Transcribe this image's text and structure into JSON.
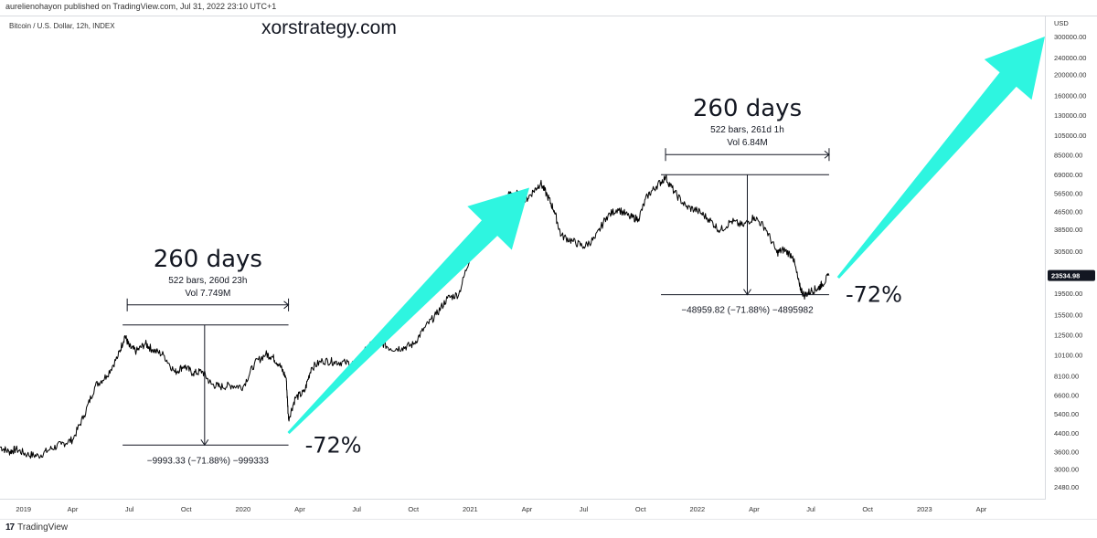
{
  "header": {
    "published_by": "aurelienohayon published on TradingView.com, Jul 31, 2022 23:10 UTC+1",
    "symbol": "Bitcoin / U.S. Dollar, 12h, INDEX",
    "watermark": "xorstrategy.com"
  },
  "footer": {
    "logo_text": "TradingView",
    "logo_mark": "17"
  },
  "colors": {
    "arrow": "#2ef5e0",
    "price_tag_bg": "#131722",
    "line": "#000000"
  },
  "chart_data": {
    "type": "line",
    "title": "Bitcoin / U.S. Dollar, 12h, INDEX",
    "scale": "log",
    "ylabel": "USD",
    "ylim": [
      2480,
      300000
    ],
    "y_ticks": [
      2480,
      3000,
      3600,
      4400,
      5400,
      6600,
      8100,
      10100,
      12500,
      15500,
      19500,
      23534.98,
      30500,
      38500,
      46500,
      56500,
      69000,
      85000,
      105000,
      130000,
      160000,
      200000,
      240000,
      300000
    ],
    "y_tick_labels": [
      "2480.00",
      "3000.00",
      "3600.00",
      "4400.00",
      "5400.00",
      "6600.00",
      "8100.00",
      "10100.00",
      "12500.00",
      "15500.00",
      "19500.00",
      "23534.98",
      "30500.00",
      "38500.00",
      "46500.00",
      "56500.00",
      "69000.00",
      "85000.00",
      "105000.00",
      "130000.00",
      "160000.00",
      "200000.00",
      "240000.00",
      "300000.00"
    ],
    "x_ticks": [
      "2019",
      "Apr",
      "Jul",
      "Oct",
      "2020",
      "Apr",
      "Jul",
      "Oct",
      "2021",
      "Apr",
      "Jul",
      "Oct",
      "2022",
      "Apr",
      "Jul",
      "Oct",
      "2023",
      "Apr"
    ],
    "x_tick_years": [
      2019.0,
      2019.25,
      2019.5,
      2019.75,
      2020.0,
      2020.25,
      2020.5,
      2020.75,
      2021.0,
      2021.25,
      2021.5,
      2021.75,
      2022.0,
      2022.25,
      2022.5,
      2022.75,
      2023.0,
      2023.25
    ],
    "xlim": [
      2018.93,
      2023.53
    ],
    "current_price": 23534.98,
    "current_price_label": "23534.98",
    "series": [
      {
        "name": "BTCUSD",
        "x": [
          2018.93,
          2018.97,
          2019.0,
          2019.05,
          2019.1,
          2019.15,
          2019.2,
          2019.25,
          2019.3,
          2019.35,
          2019.4,
          2019.45,
          2019.48,
          2019.5,
          2019.53,
          2019.57,
          2019.6,
          2019.65,
          2019.7,
          2019.74,
          2019.78,
          2019.82,
          2019.86,
          2019.9,
          2019.95,
          2020.0,
          2020.05,
          2020.1,
          2020.13,
          2020.16,
          2020.19,
          2020.2,
          2020.23,
          2020.27,
          2020.3,
          2020.35,
          2020.4,
          2020.45,
          2020.5,
          2020.55,
          2020.6,
          2020.65,
          2020.7,
          2020.75,
          2020.8,
          2020.85,
          2020.9,
          2020.95,
          2021.0,
          2021.03,
          2021.06,
          2021.1,
          2021.13,
          2021.16,
          2021.2,
          2021.24,
          2021.28,
          2021.31,
          2021.34,
          2021.37,
          2021.4,
          2021.45,
          2021.5,
          2021.55,
          2021.6,
          2021.65,
          2021.7,
          2021.74,
          2021.78,
          2021.82,
          2021.86,
          2021.9,
          2021.95,
          2022.0,
          2022.05,
          2022.1,
          2022.15,
          2022.2,
          2022.25,
          2022.3,
          2022.35,
          2022.38,
          2022.42,
          2022.45,
          2022.47,
          2022.5,
          2022.53,
          2022.55,
          2022.58
        ],
        "values": [
          3800,
          3600,
          3700,
          3500,
          3450,
          3700,
          3900,
          4100,
          5300,
          7300,
          8100,
          10000,
          12400,
          11000,
          10500,
          11400,
          10700,
          10100,
          8400,
          9000,
          8300,
          8500,
          7400,
          7200,
          7300,
          7200,
          9200,
          10200,
          9900,
          9100,
          7900,
          5100,
          6400,
          6800,
          8800,
          9500,
          9400,
          9300,
          9200,
          11000,
          11700,
          10800,
          10900,
          11300,
          13500,
          15500,
          18500,
          19300,
          29000,
          33000,
          38000,
          40000,
          47000,
          55000,
          57000,
          52000,
          58000,
          63000,
          55000,
          47000,
          36000,
          34000,
          32000,
          35000,
          44000,
          48000,
          44000,
          43000,
          55000,
          61000,
          67000,
          57000,
          49000,
          47000,
          43000,
          38000,
          42000,
          40000,
          44000,
          39000,
          30000,
          31000,
          29000,
          21000,
          19000,
          20000,
          20500,
          21500,
          23535
        ]
      }
    ],
    "annotations": [
      {
        "title": "260 days",
        "subtitle": "522 bars, 260d 23h",
        "volume": "Vol 7.749M",
        "x_start": 2019.49,
        "x_end": 2020.2,
        "price_high": 13900,
        "price_low": 3870,
        "change_label": "−9993.33 (−71.88%) −999333",
        "drop_label": "-72%"
      },
      {
        "title": "260 days",
        "subtitle": "522 bars, 261d 1h",
        "volume": "Vol 6.84M",
        "x_start": 2021.86,
        "x_end": 2022.58,
        "price_high": 68900,
        "price_low": 19200,
        "change_label": "−48959.82 (−71.88%) −4895982",
        "drop_label": "-72%"
      }
    ],
    "trend_arrows": [
      {
        "from": [
          2020.2,
          4400
        ],
        "to": [
          2021.26,
          60000
        ]
      },
      {
        "from": [
          2022.62,
          23000
        ],
        "to": [
          2023.53,
          300000
        ]
      }
    ]
  }
}
